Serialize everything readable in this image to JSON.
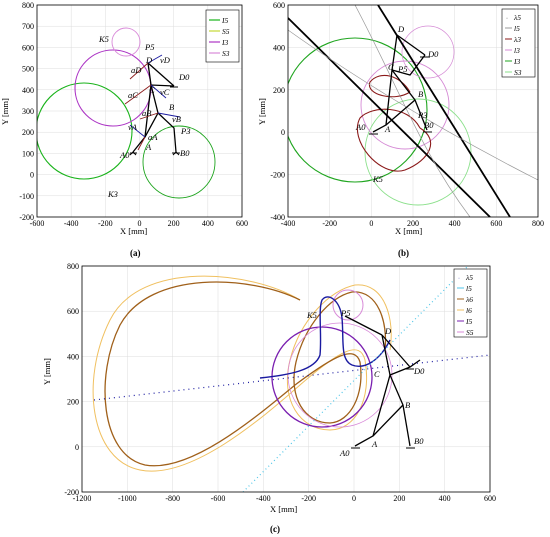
{
  "panels": [
    {
      "id": "a",
      "caption": "(a)",
      "xlabel": "X [mm]",
      "ylabel": "Y [mm]",
      "xticks": [
        "-600",
        "-400",
        "-200",
        "0",
        "200",
        "400",
        "600"
      ],
      "yticks": [
        "-200",
        "-100",
        "0",
        "100",
        "200",
        "300",
        "400",
        "500",
        "600",
        "700",
        "800"
      ],
      "point_labels": [
        "K5",
        "P5",
        "D",
        "vD",
        "D0",
        "aD",
        "vC",
        "aC",
        "C",
        "B",
        "aB",
        "vB",
        "P3",
        "vA",
        "aA",
        "A",
        "A0",
        "B0",
        "K3"
      ],
      "legend": [
        "I5",
        "S5",
        "I3",
        "S3"
      ],
      "colors": {
        "I5": "#19b31a",
        "S5": "#c5d936",
        "I3": "#ac35c5",
        "S3": "#d98ad9"
      }
    },
    {
      "id": "b",
      "caption": "(b)",
      "xlabel": "X [mm]",
      "ylabel": "Y [mm]",
      "xticks": [
        "-400",
        "-200",
        "0",
        "200",
        "400",
        "600",
        "800"
      ],
      "yticks": [
        "-400",
        "-200",
        "0",
        "200",
        "400",
        "600"
      ],
      "point_labels": [
        "D",
        "D0",
        "C",
        "P5",
        "B",
        "P3",
        "A0",
        "A",
        "B0",
        "K5"
      ],
      "legend": [
        "λ5",
        "l5",
        "λ3",
        "l3",
        "I3",
        "S3"
      ],
      "colors": {
        "λ5": "#000000",
        "l5": "#999999",
        "λ3": "#8b1a1a",
        "l3": "#d58ad5",
        "I3": "#1fa51f",
        "S3": "#8be08b"
      }
    },
    {
      "id": "c",
      "caption": "(c)",
      "xlabel": "X [mm]",
      "ylabel": "Y [mm]",
      "xticks": [
        "-1200",
        "-1000",
        "-800",
        "-600",
        "-400",
        "-200",
        "0",
        "200",
        "400",
        "600"
      ],
      "yticks": [
        "-200",
        "0",
        "200",
        "400",
        "600",
        "800"
      ],
      "point_labels": [
        "K5",
        "P5",
        "D",
        "C",
        "D0",
        "B",
        "A",
        "A0",
        "B0"
      ],
      "legend": [
        "λ5",
        "l5",
        "λ6",
        "l6",
        "I5",
        "S5"
      ],
      "colors": {
        "λ5": "#1a1aa0",
        "l5": "#4fc6e8",
        "λ6": "#a0601a",
        "l6": "#f0c060",
        "I5": "#7a1fb0",
        "S5": "#d88ad8"
      }
    }
  ]
}
